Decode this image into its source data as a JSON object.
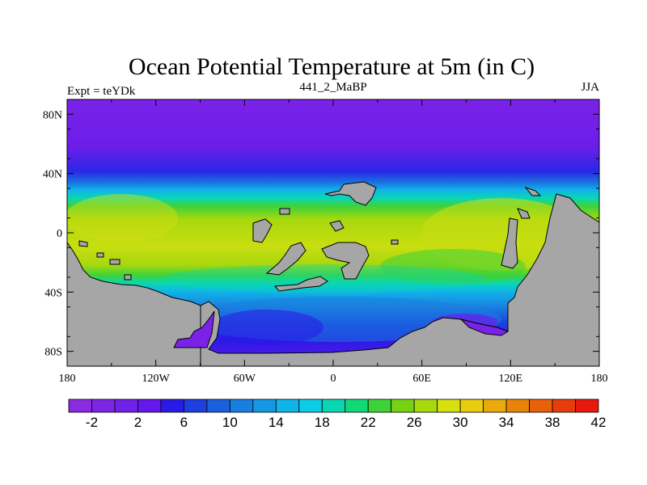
{
  "chart_data": {
    "type": "heatmap",
    "title": "Ocean Potential Temperature at 5m (in C)",
    "left_label": "Expt = teYDk",
    "center_label": "441_2_MaBP",
    "right_label": "JJA",
    "x_ticks": [
      {
        "value": -180,
        "label": "180"
      },
      {
        "value": -120,
        "label": "120W"
      },
      {
        "value": -60,
        "label": "60W"
      },
      {
        "value": 0,
        "label": "0"
      },
      {
        "value": 60,
        "label": "60E"
      },
      {
        "value": 120,
        "label": "120E"
      },
      {
        "value": 180,
        "label": "180"
      }
    ],
    "y_ticks": [
      {
        "value": 80,
        "label": "80N"
      },
      {
        "value": 40,
        "label": "40N"
      },
      {
        "value": 0,
        "label": "0"
      },
      {
        "value": -40,
        "label": "40S"
      },
      {
        "value": -80,
        "label": "80S"
      }
    ],
    "xlim": [
      -180,
      180
    ],
    "ylim": [
      -90,
      90
    ],
    "colorbar": {
      "colors": [
        "#8a2be2",
        "#7d25e6",
        "#7020e8",
        "#6418ec",
        "#2a1ae6",
        "#1e40e0",
        "#1a5fdc",
        "#1a7ee0",
        "#1598e4",
        "#10b4e8",
        "#0ccce6",
        "#0ad6b4",
        "#12d878",
        "#3ed23a",
        "#78d214",
        "#a8d80e",
        "#d6e010",
        "#e8cc0e",
        "#e8aa0c",
        "#e8840a",
        "#e8600a",
        "#e83c0a",
        "#e8180c"
      ],
      "tick_values": [
        -2,
        2,
        6,
        10,
        14,
        18,
        22,
        26,
        30,
        34,
        38,
        42
      ],
      "tick_labels": [
        "-2",
        "2",
        "6",
        "10",
        "14",
        "18",
        "22",
        "26",
        "30",
        "34",
        "38",
        "42"
      ]
    },
    "land_color": "#a6a6a6",
    "field_description": "Cold (~-2 to 2) in the far north above 55N, warming to ~26-30 in the tropics and southern mid-latitudes, cooling to ~2-10 around the southern continent."
  }
}
